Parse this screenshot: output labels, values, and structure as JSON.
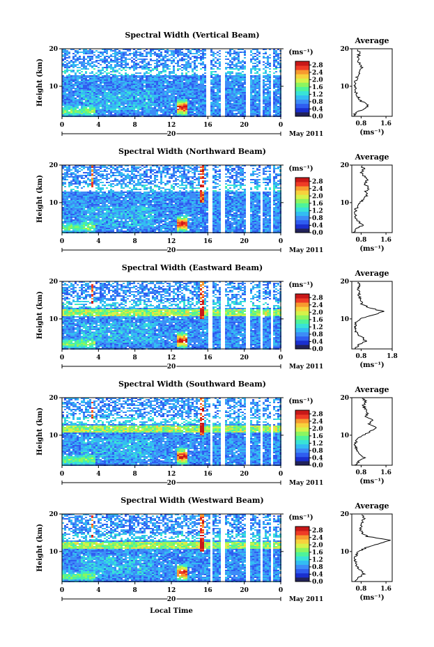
{
  "figure": {
    "xlabel": "Local Time",
    "date_label": "May 2011",
    "day_label": "20",
    "colorbar_unit": "(ms⁻¹)",
    "avg_title": "Average",
    "avg_xlabel": "(ms⁻¹)",
    "ylabel": "Height (km)"
  },
  "chart_data": [
    {
      "type": "heatmap",
      "title": "Spectral Width (Vertical Beam)",
      "x_ticks": [
        "0",
        "4",
        "8",
        "12",
        "16",
        "20",
        "0"
      ],
      "xlim": [
        0,
        24
      ],
      "y_ticks": [
        "20",
        "10"
      ],
      "ylim": [
        2,
        20
      ],
      "colorbar_ticks": [
        "2.8",
        "2.4",
        "2.0",
        "1.6",
        "1.2",
        "0.8",
        "0.4",
        "0.0"
      ],
      "colorbar_range": [
        0,
        3.0
      ],
      "data_gaps_hours": [
        [
          15.8,
          16.2
        ],
        [
          17.4,
          17.7
        ],
        [
          20.1,
          20.6
        ],
        [
          21.6,
          21.9
        ],
        [
          22.9,
          23.1
        ]
      ],
      "average_profile": {
        "xticks": [
          "0.8",
          "1.6"
        ],
        "xlim": [
          0.5,
          1.8
        ],
        "yticks": [
          "20",
          "10"
        ],
        "height_km": [
          2,
          3,
          4,
          5,
          6,
          7,
          8,
          9,
          10,
          11,
          12,
          13,
          14,
          15,
          16,
          17,
          18,
          19,
          20
        ],
        "value": [
          0.55,
          0.62,
          0.9,
          1.05,
          0.8,
          0.72,
          0.65,
          0.62,
          0.6,
          0.62,
          0.66,
          0.7,
          0.76,
          0.82,
          0.78,
          0.68,
          0.72,
          0.74,
          0.7
        ]
      }
    },
    {
      "type": "heatmap",
      "title": "Spectral Width (Northward Beam)",
      "x_ticks": [
        "0",
        "4",
        "8",
        "12",
        "16",
        "20",
        "0"
      ],
      "xlim": [
        0,
        24
      ],
      "y_ticks": [
        "20",
        "10"
      ],
      "ylim": [
        2,
        20
      ],
      "colorbar_ticks": [
        "2.8",
        "2.4",
        "2.0",
        "1.6",
        "1.2",
        "0.8",
        "0.4",
        "0.0"
      ],
      "colorbar_range": [
        0,
        3.0
      ],
      "data_gaps_hours": [
        [
          16.0,
          16.4
        ],
        [
          17.4,
          17.7
        ],
        [
          20.1,
          20.5
        ],
        [
          21.6,
          21.9
        ],
        [
          22.9,
          23.1
        ]
      ],
      "average_profile": {
        "xticks": [
          "0.8",
          "1.6"
        ],
        "xlim": [
          0.5,
          1.8
        ],
        "yticks": [
          "20",
          "10"
        ],
        "height_km": [
          2,
          3,
          4,
          5,
          6,
          7,
          8,
          9,
          10,
          11,
          12,
          13,
          14,
          15,
          16,
          17,
          18,
          19,
          20
        ],
        "value": [
          0.58,
          0.66,
          0.85,
          0.72,
          0.62,
          0.6,
          0.62,
          0.68,
          0.78,
          0.9,
          1.0,
          0.95,
          1.05,
          0.92,
          1.0,
          0.9,
          0.82,
          0.88,
          0.8
        ]
      }
    },
    {
      "type": "heatmap",
      "title": "Spectral Width (Eastward Beam)",
      "x_ticks": [
        "0",
        "4",
        "8",
        "12",
        "16",
        "20",
        "0"
      ],
      "xlim": [
        0,
        24
      ],
      "y_ticks": [
        "20",
        "10"
      ],
      "ylim": [
        2,
        20
      ],
      "colorbar_ticks": [
        "2.8",
        "2.4",
        "2.0",
        "1.6",
        "1.2",
        "0.8",
        "0.4",
        "0.0"
      ],
      "colorbar_range": [
        0,
        3.0
      ],
      "data_gaps_hours": [
        [
          16.0,
          16.4
        ],
        [
          17.4,
          17.7
        ],
        [
          20.1,
          20.5
        ],
        [
          21.6,
          21.9
        ],
        [
          22.9,
          23.1
        ]
      ],
      "average_profile": {
        "xticks": [
          "0.8",
          "1.8"
        ],
        "xlim": [
          0.5,
          1.8
        ],
        "yticks": [
          "20",
          "10"
        ],
        "height_km": [
          2,
          3,
          4,
          5,
          6,
          7,
          8,
          9,
          10,
          11,
          12,
          13,
          14,
          15,
          16,
          17,
          18,
          19,
          20
        ],
        "value": [
          0.6,
          0.7,
          0.95,
          0.85,
          0.68,
          0.62,
          0.6,
          0.64,
          0.75,
          1.2,
          1.5,
          1.05,
          0.82,
          0.78,
          0.74,
          0.72,
          0.7,
          0.74,
          0.7
        ]
      }
    },
    {
      "type": "heatmap",
      "title": "Spectral Width (Southward Beam)",
      "x_ticks": [
        "0",
        "4",
        "8",
        "12",
        "16",
        "20",
        "0"
      ],
      "xlim": [
        0,
        24
      ],
      "y_ticks": [
        "20",
        "10"
      ],
      "ylim": [
        2,
        20
      ],
      "colorbar_ticks": [
        "2.8",
        "2.4",
        "2.0",
        "1.6",
        "1.2",
        "0.8",
        "0.4",
        "0.0"
      ],
      "colorbar_range": [
        0,
        3.0
      ],
      "data_gaps_hours": [
        [
          16.1,
          16.5
        ],
        [
          17.4,
          17.7
        ],
        [
          20.1,
          20.5
        ],
        [
          21.6,
          21.9
        ],
        [
          22.9,
          23.1
        ]
      ],
      "average_profile": {
        "xticks": [
          "0.8",
          "1.6"
        ],
        "xlim": [
          0.5,
          1.8
        ],
        "yticks": [
          "20",
          "10"
        ],
        "height_km": [
          2,
          3,
          4,
          5,
          6,
          7,
          8,
          9,
          10,
          11,
          12,
          13,
          14,
          15,
          16,
          17,
          18,
          19,
          20
        ],
        "value": [
          0.6,
          0.72,
          0.9,
          0.78,
          0.66,
          0.62,
          0.62,
          0.68,
          0.85,
          1.1,
          1.3,
          1.05,
          1.15,
          0.95,
          1.0,
          0.92,
          0.88,
          0.95,
          0.85
        ]
      }
    },
    {
      "type": "heatmap",
      "title": "Spectral Width (Westward Beam)",
      "x_ticks": [
        "0",
        "4",
        "8",
        "12",
        "16",
        "20",
        "0"
      ],
      "xlim": [
        0,
        24
      ],
      "y_ticks": [
        "20",
        "10"
      ],
      "ylim": [
        2,
        20
      ],
      "colorbar_ticks": [
        "2.8",
        "2.4",
        "2.0",
        "1.6",
        "1.2",
        "0.8",
        "0.4",
        "0.0"
      ],
      "colorbar_range": [
        0,
        3.0
      ],
      "data_gaps_hours": [
        [
          16.1,
          16.5
        ],
        [
          17.4,
          17.7
        ],
        [
          20.1,
          20.5
        ],
        [
          21.6,
          21.9
        ],
        [
          22.9,
          23.1
        ]
      ],
      "average_profile": {
        "xticks": [
          "0.8",
          "1.6"
        ],
        "xlim": [
          0.5,
          1.8
        ],
        "yticks": [
          "20",
          "10"
        ],
        "height_km": [
          2,
          3,
          4,
          5,
          6,
          7,
          8,
          9,
          10,
          11,
          12,
          13,
          14,
          15,
          16,
          17,
          18,
          19,
          20
        ],
        "value": [
          0.6,
          0.72,
          0.88,
          0.8,
          0.66,
          0.62,
          0.6,
          0.64,
          0.72,
          0.95,
          1.35,
          1.75,
          1.0,
          0.82,
          0.78,
          0.8,
          0.85,
          0.9,
          0.82
        ]
      }
    }
  ]
}
